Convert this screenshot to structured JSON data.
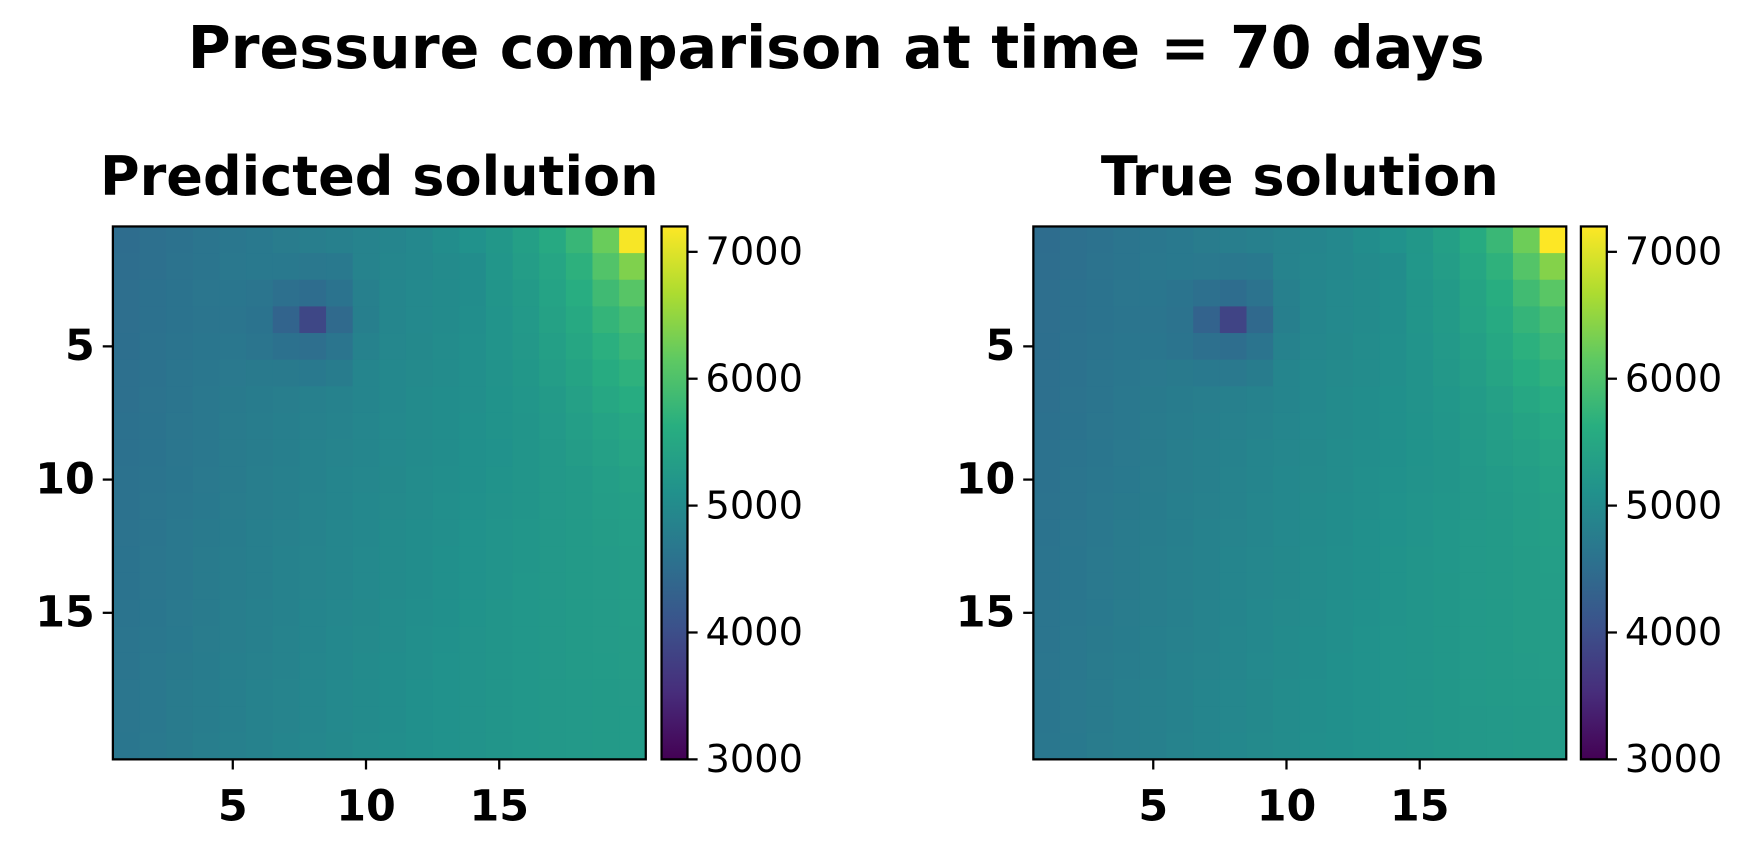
{
  "title": "Pressure comparison at time = 70 days",
  "chart_data": [
    {
      "type": "heatmap",
      "title": "Predicted solution",
      "colormap": "viridis",
      "xlim": [
        0.5,
        20.5
      ],
      "ylim": [
        20.5,
        0.5
      ],
      "xticks": [
        5,
        10,
        15
      ],
      "yticks": [
        5,
        10,
        15
      ],
      "clim": [
        3000,
        7200
      ],
      "cticks": [
        3000,
        4000,
        5000,
        6000,
        7000
      ],
      "values": [
        [
          4500,
          4540,
          4580,
          4620,
          4660,
          4700,
          4740,
          4780,
          4820,
          4860,
          4900,
          4940,
          5030,
          5120,
          5210,
          5350,
          5540,
          5780,
          6220,
          7160
        ],
        [
          4510,
          4550,
          4590,
          4630,
          4670,
          4700,
          4700,
          4680,
          4700,
          4870,
          4910,
          4950,
          4990,
          5030,
          5190,
          5310,
          5470,
          5670,
          6030,
          6370
        ],
        [
          4520,
          4560,
          4600,
          4640,
          4650,
          4620,
          4550,
          4500,
          4600,
          4820,
          4920,
          4960,
          5000,
          5040,
          5180,
          5260,
          5420,
          5600,
          5860,
          6080
        ],
        [
          4520,
          4560,
          4600,
          4630,
          4630,
          4600,
          4350,
          3900,
          4450,
          4800,
          4920,
          4960,
          5000,
          5050,
          5160,
          5250,
          5390,
          5540,
          5740,
          5890
        ],
        [
          4530,
          4570,
          4610,
          4650,
          4660,
          4620,
          4560,
          4520,
          4620,
          4840,
          4930,
          4970,
          5010,
          5060,
          5150,
          5230,
          5350,
          5480,
          5650,
          5780
        ],
        [
          4540,
          4580,
          4620,
          4660,
          4690,
          4710,
          4710,
          4700,
          4750,
          4890,
          4940,
          4980,
          5020,
          5070,
          5140,
          5210,
          5310,
          5430,
          5570,
          5680
        ],
        [
          4550,
          4590,
          4630,
          4670,
          4710,
          4750,
          4780,
          4810,
          4850,
          4900,
          4950,
          4990,
          5030,
          5070,
          5130,
          5190,
          5270,
          5370,
          5490,
          5580
        ],
        [
          4560,
          4600,
          4640,
          4680,
          4720,
          4760,
          4800,
          4830,
          4870,
          4910,
          4960,
          5000,
          5040,
          5080,
          5130,
          5180,
          5250,
          5330,
          5420,
          5500
        ],
        [
          4560,
          4600,
          4640,
          4680,
          4720,
          4760,
          4800,
          4840,
          4880,
          4920,
          4960,
          5000,
          5040,
          5080,
          5120,
          5170,
          5230,
          5300,
          5370,
          5440
        ],
        [
          4570,
          4610,
          4650,
          4690,
          4730,
          4770,
          4810,
          4850,
          4890,
          4930,
          4970,
          5010,
          5050,
          5090,
          5130,
          5170,
          5220,
          5270,
          5330,
          5390
        ],
        [
          4580,
          4620,
          4660,
          4700,
          4740,
          4780,
          4820,
          4860,
          4900,
          4940,
          4980,
          5020,
          5060,
          5100,
          5140,
          5180,
          5220,
          5260,
          5310,
          5360
        ],
        [
          4590,
          4630,
          4670,
          4710,
          4750,
          4790,
          4830,
          4870,
          4910,
          4950,
          4990,
          5030,
          5070,
          5110,
          5150,
          5190,
          5230,
          5260,
          5300,
          5340
        ],
        [
          4600,
          4640,
          4680,
          4720,
          4760,
          4800,
          4840,
          4880,
          4920,
          4960,
          5000,
          5040,
          5080,
          5120,
          5160,
          5190,
          5230,
          5260,
          5290,
          5320
        ],
        [
          4600,
          4640,
          4680,
          4720,
          4760,
          4800,
          4840,
          4880,
          4920,
          4960,
          5000,
          5040,
          5080,
          5120,
          5160,
          5200,
          5230,
          5260,
          5290,
          5310
        ],
        [
          4610,
          4650,
          4690,
          4730,
          4770,
          4810,
          4850,
          4890,
          4930,
          4970,
          5010,
          5050,
          5090,
          5130,
          5170,
          5200,
          5230,
          5260,
          5290,
          5310
        ],
        [
          4620,
          4660,
          4700,
          4740,
          4780,
          4820,
          4860,
          4900,
          4940,
          4980,
          5020,
          5060,
          5100,
          5140,
          5170,
          5200,
          5230,
          5260,
          5290,
          5300
        ],
        [
          4630,
          4670,
          4710,
          4750,
          4790,
          4830,
          4870,
          4910,
          4950,
          4990,
          5030,
          5070,
          5110,
          5140,
          5170,
          5200,
          5230,
          5260,
          5280,
          5300
        ],
        [
          4640,
          4680,
          4720,
          4760,
          4800,
          4840,
          4880,
          4920,
          4960,
          5000,
          5040,
          5080,
          5110,
          5140,
          5170,
          5200,
          5230,
          5250,
          5270,
          5290
        ],
        [
          4640,
          4680,
          4720,
          4760,
          4800,
          4840,
          4880,
          4920,
          4960,
          5000,
          5040,
          5080,
          5110,
          5140,
          5170,
          5200,
          5220,
          5240,
          5260,
          5280
        ],
        [
          4650,
          4690,
          4730,
          4770,
          4810,
          4850,
          4890,
          4930,
          4970,
          5010,
          5050,
          5080,
          5110,
          5140,
          5170,
          5200,
          5220,
          5240,
          5260,
          5280
        ]
      ]
    },
    {
      "type": "heatmap",
      "title": "True solution",
      "colormap": "viridis",
      "xlim": [
        0.5,
        20.5
      ],
      "ylim": [
        20.5,
        0.5
      ],
      "xticks": [
        5,
        10,
        15
      ],
      "yticks": [
        5,
        10,
        15
      ],
      "clim": [
        3000,
        7200
      ],
      "cticks": [
        3000,
        4000,
        5000,
        6000,
        7000
      ],
      "values": [
        [
          4500,
          4540,
          4580,
          4620,
          4660,
          4700,
          4740,
          4780,
          4820,
          4860,
          4900,
          4940,
          5030,
          5120,
          5210,
          5360,
          5560,
          5800,
          6250,
          7200
        ],
        [
          4510,
          4550,
          4590,
          4630,
          4670,
          4700,
          4690,
          4670,
          4700,
          4870,
          4910,
          4950,
          4990,
          5040,
          5200,
          5320,
          5480,
          5690,
          6050,
          6400
        ],
        [
          4520,
          4560,
          4600,
          4640,
          4650,
          4610,
          4540,
          4490,
          4590,
          4820,
          4920,
          4960,
          5000,
          5050,
          5180,
          5270,
          5430,
          5610,
          5870,
          6100
        ],
        [
          4520,
          4560,
          4600,
          4630,
          4620,
          4590,
          4330,
          3850,
          4430,
          4800,
          4920,
          4960,
          5000,
          5050,
          5170,
          5260,
          5400,
          5550,
          5750,
          5900
        ],
        [
          4530,
          4570,
          4610,
          4650,
          4650,
          4610,
          4550,
          4510,
          4610,
          4840,
          4930,
          4970,
          5010,
          5060,
          5150,
          5240,
          5360,
          5490,
          5660,
          5790
        ],
        [
          4540,
          4580,
          4620,
          4660,
          4690,
          4710,
          4700,
          4690,
          4750,
          4890,
          4940,
          4980,
          5020,
          5070,
          5140,
          5220,
          5320,
          5440,
          5580,
          5690
        ],
        [
          4550,
          4590,
          4630,
          4670,
          4710,
          4750,
          4780,
          4810,
          4850,
          4900,
          4950,
          4990,
          5030,
          5080,
          5140,
          5200,
          5280,
          5380,
          5500,
          5590
        ],
        [
          4560,
          4600,
          4640,
          4680,
          4720,
          4760,
          4800,
          4830,
          4870,
          4910,
          4960,
          5000,
          5040,
          5080,
          5130,
          5190,
          5260,
          5340,
          5430,
          5510
        ],
        [
          4570,
          4610,
          4650,
          4690,
          4730,
          4770,
          4810,
          4850,
          4890,
          4930,
          4970,
          5010,
          5050,
          5090,
          5130,
          5180,
          5240,
          5310,
          5380,
          5450
        ],
        [
          4580,
          4620,
          4660,
          4700,
          4740,
          4780,
          4820,
          4860,
          4900,
          4940,
          4980,
          5020,
          5060,
          5100,
          5140,
          5180,
          5230,
          5280,
          5340,
          5400
        ],
        [
          4590,
          4630,
          4670,
          4710,
          4750,
          4790,
          4830,
          4870,
          4910,
          4950,
          4990,
          5030,
          5070,
          5110,
          5150,
          5190,
          5230,
          5270,
          5320,
          5370
        ],
        [
          4600,
          4640,
          4680,
          4720,
          4760,
          4800,
          4840,
          4880,
          4920,
          4960,
          5000,
          5040,
          5080,
          5120,
          5160,
          5200,
          5240,
          5270,
          5310,
          5350
        ],
        [
          4610,
          4650,
          4690,
          4730,
          4770,
          4810,
          4850,
          4890,
          4930,
          4970,
          5010,
          5050,
          5090,
          5130,
          5170,
          5200,
          5240,
          5270,
          5300,
          5330
        ],
        [
          4610,
          4650,
          4690,
          4730,
          4770,
          4810,
          4850,
          4890,
          4930,
          4970,
          5010,
          5050,
          5090,
          5130,
          5170,
          5210,
          5240,
          5270,
          5300,
          5320
        ],
        [
          4620,
          4660,
          4700,
          4740,
          4780,
          4820,
          4860,
          4900,
          4940,
          4980,
          5020,
          5060,
          5100,
          5140,
          5180,
          5210,
          5240,
          5270,
          5300,
          5320
        ],
        [
          4630,
          4670,
          4710,
          4750,
          4790,
          4830,
          4870,
          4910,
          4950,
          4990,
          5030,
          5070,
          5110,
          5150,
          5180,
          5210,
          5240,
          5270,
          5300,
          5310
        ],
        [
          4640,
          4680,
          4720,
          4760,
          4800,
          4840,
          4880,
          4920,
          4960,
          5000,
          5040,
          5080,
          5120,
          5150,
          5180,
          5210,
          5240,
          5270,
          5290,
          5310
        ],
        [
          4650,
          4690,
          4730,
          4770,
          4810,
          4850,
          4890,
          4930,
          4970,
          5010,
          5050,
          5090,
          5120,
          5150,
          5180,
          5210,
          5240,
          5260,
          5280,
          5300
        ],
        [
          4650,
          4690,
          4730,
          4770,
          4810,
          4850,
          4890,
          4930,
          4970,
          5010,
          5050,
          5090,
          5120,
          5150,
          5180,
          5210,
          5230,
          5250,
          5270,
          5290
        ],
        [
          4660,
          4700,
          4740,
          4780,
          4820,
          4860,
          4900,
          4940,
          4980,
          5020,
          5060,
          5090,
          5120,
          5150,
          5180,
          5210,
          5230,
          5250,
          5270,
          5290
        ]
      ]
    }
  ]
}
